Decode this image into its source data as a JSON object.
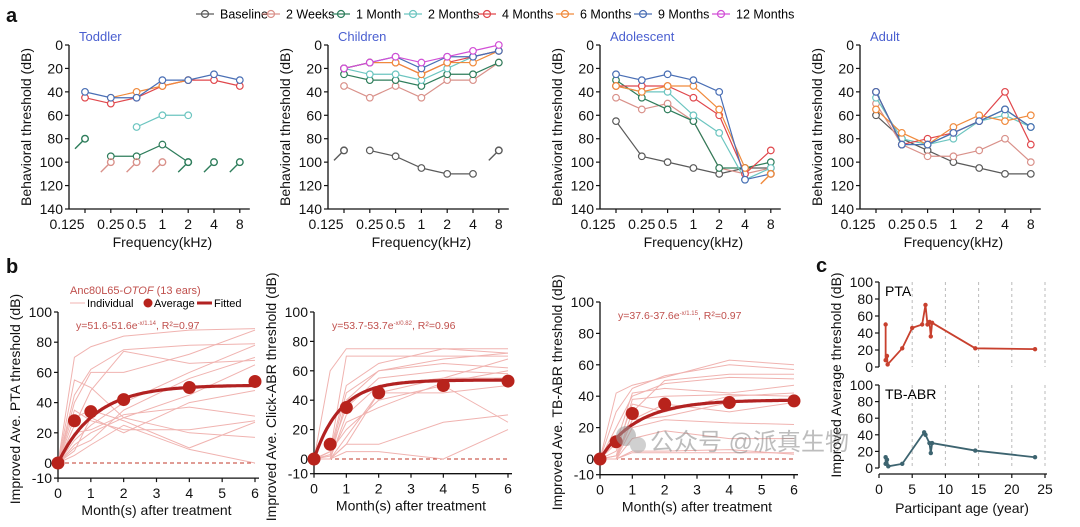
{
  "panel_labels": [
    "a",
    "b",
    "c"
  ],
  "legend_a": [
    {
      "name": "Baseline",
      "color": "#5a5a5a"
    },
    {
      "name": "2 Weeks",
      "color": "#d9918a"
    },
    {
      "name": "1 Month",
      "color": "#2e7d5b"
    },
    {
      "name": "2 Months",
      "color": "#6cc5c0"
    },
    {
      "name": "4 Months",
      "color": "#e0474c"
    },
    {
      "name": "6 Months",
      "color": "#f08a3c"
    },
    {
      "name": "9 Months",
      "color": "#4a6fb5"
    },
    {
      "name": "12 Months",
      "color": "#d24fd6"
    }
  ],
  "watermark": "公众号 @派真生物",
  "chart_data": [
    {
      "panel": "a",
      "type": "line",
      "title": "Toddler",
      "xlabel": "Frequency(kHz)",
      "ylabel": "Behavioral threshold (dB)",
      "x": [
        "0.125",
        "0.25",
        "0.5",
        "1",
        "2",
        "4",
        "8"
      ],
      "ylim": [
        140,
        0
      ],
      "yticks": [
        0,
        20,
        40,
        60,
        80,
        100,
        120,
        140
      ],
      "series": [
        {
          "name": "1 Month",
          "values": [
            null,
            95,
            95,
            85,
            100,
            null,
            null
          ]
        },
        {
          "name": "2 Months",
          "values": [
            null,
            null,
            70,
            60,
            60,
            null,
            null
          ]
        },
        {
          "name": "4 Months",
          "values": [
            45,
            50,
            45,
            35,
            30,
            30,
            35
          ]
        },
        {
          "name": "6 Months",
          "values": [
            null,
            45,
            40,
            35,
            30,
            null,
            null
          ]
        },
        {
          "name": "9 Months",
          "values": [
            40,
            45,
            45,
            30,
            30,
            25,
            30
          ]
        }
      ],
      "no_response": [
        {
          "name": "1 Month",
          "x": "0.125",
          "y": 80
        },
        {
          "name": "2 Weeks",
          "x": "0.25",
          "y": 100
        },
        {
          "name": "2 Weeks",
          "x": "0.5",
          "y": 100
        },
        {
          "name": "2 Weeks",
          "x": "1",
          "y": 100
        },
        {
          "name": "1 Month",
          "x": "2",
          "y": 100
        },
        {
          "name": "1 Month",
          "x": "4",
          "y": 100
        },
        {
          "name": "1 Month",
          "x": "8",
          "y": 100
        }
      ]
    },
    {
      "panel": "a",
      "type": "line",
      "title": "Children",
      "xlabel": "Frequency(kHz)",
      "ylabel": "Behavioral threshold (dB)",
      "x": [
        "0.125",
        "0.25",
        "0.5",
        "1",
        "2",
        "4",
        "8"
      ],
      "ylim": [
        140,
        0
      ],
      "yticks": [
        0,
        20,
        40,
        60,
        80,
        100,
        120,
        140
      ],
      "series": [
        {
          "name": "Baseline",
          "values": [
            null,
            90,
            95,
            105,
            110,
            110,
            null
          ]
        },
        {
          "name": "2 Weeks",
          "values": [
            35,
            45,
            35,
            45,
            30,
            30,
            15
          ]
        },
        {
          "name": "1 Month",
          "values": [
            25,
            30,
            30,
            35,
            25,
            25,
            15
          ]
        },
        {
          "name": "2 Months",
          "values": [
            20,
            25,
            25,
            30,
            20,
            10,
            5
          ]
        },
        {
          "name": "4 Months",
          "values": [
            20,
            15,
            15,
            25,
            15,
            10,
            5
          ]
        },
        {
          "name": "6 Months",
          "values": [
            20,
            15,
            15,
            25,
            15,
            15,
            5
          ]
        },
        {
          "name": "9 Months",
          "values": [
            20,
            15,
            10,
            20,
            10,
            10,
            5
          ]
        },
        {
          "name": "12 Months",
          "values": [
            20,
            15,
            10,
            15,
            10,
            5,
            0
          ]
        }
      ],
      "no_response": [
        {
          "name": "Baseline",
          "x": "0.125",
          "y": 90
        },
        {
          "name": "Baseline",
          "x": "8",
          "y": 90
        }
      ]
    },
    {
      "panel": "a",
      "type": "line",
      "title": "Adolescent",
      "xlabel": "Frequency(kHz)",
      "ylabel": "Behavioral threshold (dB)",
      "x": [
        "0.125",
        "0.25",
        "0.5",
        "1",
        "2",
        "4",
        "8"
      ],
      "ylim": [
        140,
        0
      ],
      "yticks": [
        0,
        20,
        40,
        60,
        80,
        100,
        120,
        140
      ],
      "series": [
        {
          "name": "Baseline",
          "values": [
            65,
            95,
            100,
            105,
            110,
            105,
            105
          ]
        },
        {
          "name": "2 Weeks",
          "values": [
            45,
            55,
            50,
            65,
            105,
            110,
            105
          ]
        },
        {
          "name": "1 Month",
          "values": [
            30,
            45,
            55,
            65,
            105,
            105,
            100
          ]
        },
        {
          "name": "2 Months",
          "values": [
            35,
            40,
            40,
            60,
            75,
            115,
            105
          ]
        },
        {
          "name": "4 Months",
          "values": [
            35,
            35,
            35,
            45,
            60,
            110,
            90
          ]
        },
        {
          "name": "6 Months",
          "values": [
            35,
            40,
            35,
            35,
            55,
            105,
            null
          ]
        },
        {
          "name": "9 Months",
          "values": [
            25,
            30,
            25,
            30,
            40,
            115,
            110
          ]
        }
      ],
      "no_response": [
        {
          "name": "6 Months",
          "x": "8",
          "y": 110
        }
      ]
    },
    {
      "panel": "a",
      "type": "line",
      "title": "Adult",
      "xlabel": "Frequency(kHz)",
      "ylabel": "Behavioral threshold (dB)",
      "x": [
        "0.125",
        "0.25",
        "0.5",
        "1",
        "2",
        "4",
        "8"
      ],
      "ylim": [
        140,
        0
      ],
      "yticks": [
        0,
        20,
        40,
        60,
        80,
        100,
        120,
        140
      ],
      "series": [
        {
          "name": "Baseline",
          "values": [
            60,
            80,
            90,
            100,
            105,
            110,
            110
          ]
        },
        {
          "name": "2 Weeks",
          "values": [
            50,
            85,
            95,
            95,
            90,
            80,
            100
          ]
        },
        {
          "name": "1 Month",
          "values": [
            40,
            85,
            85,
            75,
            65,
            55,
            70
          ]
        },
        {
          "name": "2 Months",
          "values": [
            45,
            80,
            85,
            80,
            65,
            60,
            70
          ]
        },
        {
          "name": "4 Months",
          "values": [
            40,
            85,
            80,
            75,
            65,
            40,
            85
          ]
        },
        {
          "name": "6 Months",
          "values": [
            55,
            75,
            85,
            70,
            60,
            65,
            60
          ]
        },
        {
          "name": "9 Months",
          "values": [
            40,
            85,
            85,
            75,
            65,
            55,
            70
          ]
        }
      ],
      "no_response": []
    },
    {
      "panel": "b",
      "type": "line",
      "legend_title": "Anc80L65-",
      "legend_title_italic": "OTOF",
      "legend_title_suffix": " (13 ears)",
      "legend": [
        "Individual",
        "Average",
        "Fitted"
      ],
      "equation": "y=51.6-51.6e",
      "equation_exp": "-x/1.14",
      "equation_r2": ", R²=0.97",
      "fit": {
        "A": 51.6,
        "tau": 1.14
      },
      "xlabel": "Month(s) after treatment",
      "ylabel": "Improved Ave. PTA threshold (dB)",
      "xlim": [
        0,
        6
      ],
      "ylim": [
        -10,
        100
      ],
      "xticks": [
        0,
        1,
        2,
        3,
        4,
        5,
        6
      ],
      "yticks": [
        -10,
        0,
        20,
        40,
        60,
        80,
        100
      ],
      "x": [
        0,
        0.5,
        1,
        2,
        4,
        6
      ],
      "average": [
        0,
        28,
        34,
        42,
        50,
        54
      ],
      "individual": [
        [
          0,
          70,
          77,
          84,
          88,
          89
        ],
        [
          0,
          55,
          50,
          30,
          20,
          17
        ],
        [
          0,
          45,
          62,
          75,
          78,
          79
        ],
        [
          0,
          40,
          60,
          60,
          72,
          88
        ],
        [
          0,
          30,
          35,
          28,
          10,
          27
        ],
        [
          0,
          25,
          48,
          74,
          66,
          68
        ],
        [
          0,
          20,
          22,
          32,
          37,
          31
        ],
        [
          0,
          12,
          20,
          30,
          45,
          65
        ],
        [
          0,
          10,
          15,
          35,
          56,
          70
        ],
        [
          0,
          8,
          30,
          20,
          40,
          48
        ],
        [
          0,
          5,
          12,
          25,
          9,
          0
        ],
        [
          0,
          15,
          25,
          40,
          60,
          78
        ],
        [
          0,
          35,
          28,
          22,
          22,
          28
        ]
      ]
    },
    {
      "panel": "b",
      "type": "line",
      "equation": "y=53.7-53.7e",
      "equation_exp": "-x/0.82",
      "equation_r2": ", R²=0.96",
      "fit": {
        "A": 53.7,
        "tau": 0.82
      },
      "xlabel": "Month(s) after treatment",
      "ylabel": "Improved Ave. Click-ABR threshold (dB)",
      "xlim": [
        0,
        6
      ],
      "ylim": [
        -10,
        100
      ],
      "xticks": [
        0,
        1,
        2,
        3,
        4,
        5,
        6
      ],
      "yticks": [
        -10,
        0,
        20,
        40,
        60,
        80,
        100
      ],
      "x": [
        0,
        0.5,
        1,
        2,
        4,
        6
      ],
      "average": [
        0,
        10,
        35,
        45,
        50,
        53
      ],
      "individual": [
        [
          0,
          60,
          75,
          75,
          75,
          75
        ],
        [
          0,
          5,
          70,
          70,
          70,
          70
        ],
        [
          0,
          5,
          50,
          65,
          75,
          72
        ],
        [
          0,
          0,
          40,
          60,
          65,
          62
        ],
        [
          0,
          5,
          35,
          55,
          60,
          58
        ],
        [
          0,
          0,
          30,
          50,
          55,
          55
        ],
        [
          0,
          0,
          10,
          10,
          25,
          30
        ],
        [
          0,
          0,
          5,
          5,
          0,
          20
        ],
        [
          0,
          5,
          20,
          40,
          50,
          25
        ],
        [
          0,
          0,
          15,
          45,
          55,
          68
        ],
        [
          0,
          2,
          25,
          35,
          52,
          60
        ],
        [
          0,
          0,
          10,
          45,
          45,
          50
        ],
        [
          0,
          3,
          45,
          60,
          68,
          72
        ]
      ]
    },
    {
      "panel": "b",
      "type": "line",
      "equation": "y=37.6-37.6e",
      "equation_exp": "-x/1.15",
      "equation_r2": ", R²=0.97",
      "fit": {
        "A": 37.6,
        "tau": 1.15
      },
      "xlabel": "Month(s) after treatment",
      "ylabel": "Improved Ave. TB-ABR threshold (dB)",
      "xlim": [
        0,
        6
      ],
      "ylim": [
        -10,
        100
      ],
      "xticks": [
        0,
        1,
        2,
        3,
        4,
        5,
        6
      ],
      "yticks": [
        -10,
        0,
        20,
        40,
        60,
        80,
        100
      ],
      "x": [
        0,
        0.5,
        1,
        2,
        4,
        6
      ],
      "average": [
        0,
        11,
        29,
        35,
        36,
        37
      ],
      "individual": [
        [
          0,
          42,
          47,
          52,
          63,
          60
        ],
        [
          0,
          30,
          45,
          53,
          60,
          57
        ],
        [
          0,
          20,
          40,
          48,
          52,
          51
        ],
        [
          0,
          10,
          42,
          45,
          42,
          47
        ],
        [
          0,
          5,
          35,
          30,
          40,
          42
        ],
        [
          0,
          2,
          25,
          27,
          36,
          38
        ],
        [
          0,
          0,
          20,
          25,
          23,
          22
        ],
        [
          0,
          0,
          13,
          18,
          13,
          13
        ],
        [
          0,
          0,
          5,
          5,
          6,
          3
        ],
        [
          0,
          0,
          30,
          50,
          54,
          54
        ],
        [
          0,
          2,
          38,
          40,
          41,
          40
        ],
        [
          0,
          0,
          25,
          35,
          30,
          36
        ],
        [
          0,
          0,
          4,
          4,
          4,
          4
        ]
      ]
    },
    {
      "panel": "c",
      "type": "line",
      "title": "PTA",
      "xlabel": "Participant age (year)",
      "ylabel": "Improved Average threshold (dB)",
      "xlim": [
        0,
        25
      ],
      "ylim": [
        0,
        100
      ],
      "xticks": [
        0,
        5,
        10,
        15,
        20,
        25
      ],
      "yticks": [
        0,
        20,
        40,
        60,
        80,
        100
      ],
      "color": "#c8402e",
      "points": [
        [
          1,
          50
        ],
        [
          1,
          8
        ],
        [
          1.2,
          13
        ],
        [
          1.3,
          3
        ],
        [
          3.5,
          22
        ],
        [
          5,
          46
        ],
        [
          6.5,
          50
        ],
        [
          7,
          73
        ],
        [
          7.3,
          50
        ],
        [
          7.6,
          53
        ],
        [
          7.8,
          36
        ],
        [
          8,
          52
        ],
        [
          14.5,
          22
        ],
        [
          23.5,
          21
        ]
      ]
    },
    {
      "panel": "c",
      "type": "line",
      "title": "TB-ABR",
      "xlabel": "Participant age (year)",
      "ylabel": "Improved Average threshold (dB)",
      "xlim": [
        0,
        25
      ],
      "ylim": [
        0,
        100
      ],
      "xticks": [
        0,
        5,
        10,
        15,
        20,
        25
      ],
      "yticks": [
        0,
        20,
        40,
        60,
        80,
        100
      ],
      "color": "#3d6470",
      "points": [
        [
          1,
          13
        ],
        [
          1,
          5
        ],
        [
          1.2,
          10
        ],
        [
          1.4,
          2
        ],
        [
          3.5,
          5
        ],
        [
          6.8,
          43
        ],
        [
          7,
          40
        ],
        [
          7.6,
          30
        ],
        [
          7.8,
          18
        ],
        [
          8,
          30
        ],
        [
          14.5,
          21
        ],
        [
          23.5,
          13
        ]
      ]
    }
  ]
}
